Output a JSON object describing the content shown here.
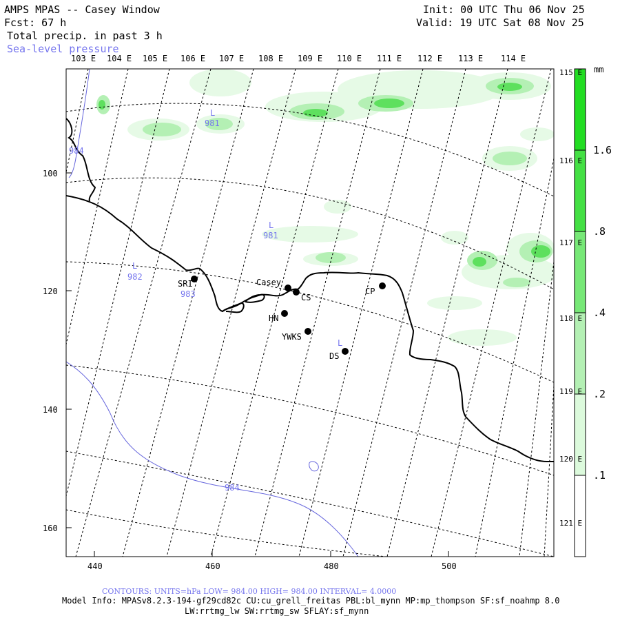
{
  "header": {
    "title": "AMPS MPAS -- Casey Window",
    "forecast": "Fcst:   67 h",
    "field": "Total precip. in past 3 h",
    "overlay": "Sea-level pressure",
    "init": "Init: 00 UTC Thu 06 Nov 25",
    "valid": "Valid: 19 UTC Sat 08 Nov 25"
  },
  "axes": {
    "top_labels": [
      "103 E",
      "104 E",
      "105 E",
      "106 E",
      "107 E",
      "108 E",
      "109 E",
      "110 E",
      "111 E",
      "112 E",
      "113 E",
      "114 E"
    ],
    "right_labels": [
      "115 E",
      "116 E",
      "117 E",
      "118 E",
      "119 E",
      "120 E",
      "121 E"
    ],
    "left_ticks": [
      "100",
      "120",
      "140",
      "160"
    ],
    "bottom_ticks": [
      "440",
      "460",
      "480",
      "500"
    ]
  },
  "colorbar": {
    "unit": "mm",
    "labels": [
      "1.6",
      ".8",
      ".4",
      ".2",
      ".1"
    ],
    "colors": [
      "#22dd22",
      "#44e044",
      "#77e877",
      "#aaf0aa",
      "#d4f8d4",
      "#ecfcec",
      "#ffffff"
    ]
  },
  "stations": [
    {
      "id": "SRI",
      "label": "SRI"
    },
    {
      "id": "Casey",
      "label": "Casey"
    },
    {
      "id": "CS",
      "label": "CS"
    },
    {
      "id": "HN",
      "label": "HN"
    },
    {
      "id": "YWKS",
      "label": "YWKS"
    },
    {
      "id": "DS",
      "label": "DS"
    },
    {
      "id": "CP",
      "label": "CP"
    }
  ],
  "pressure_labels": [
    {
      "type": "L",
      "value": "981"
    },
    {
      "type": "",
      "value": "984"
    },
    {
      "type": "L",
      "value": "981"
    },
    {
      "type": "L",
      "value": "982"
    },
    {
      "type": "",
      "value": "983"
    },
    {
      "type": "L",
      "value": ""
    },
    {
      "type": "",
      "value": "984"
    }
  ],
  "footer": {
    "contours": "CONTOURS:  UNITS=hPa  LOW=   984.00       HIGH=   984.00      INTERVAL=    4.0000",
    "model_info": "Model Info: MPASv8.2.3-194-gf29cd82c CU:cu_grell_freitas PBL:bl_mynn MP:mp_thompson SF:sf_noahmp 8.0",
    "model_info2": "LW:rrtmg_lw SW:rrtmg_sw SFLAY:sf_mynn"
  }
}
